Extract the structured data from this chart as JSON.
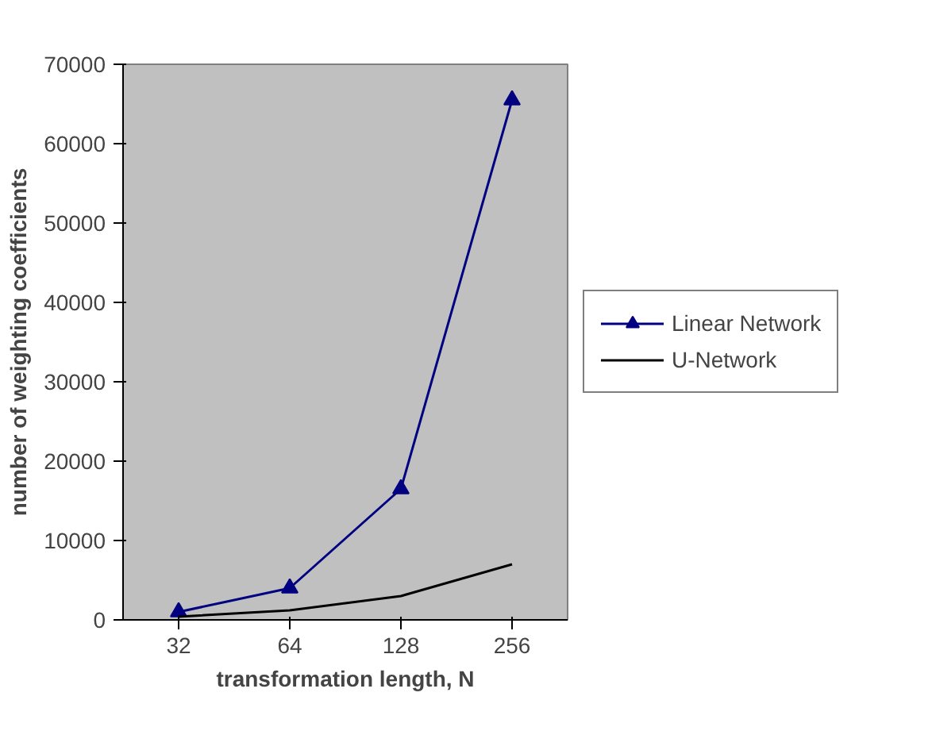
{
  "chart_data": {
    "type": "line",
    "xlabel": "transformation length, N",
    "ylabel": "number of weighting coefficients",
    "categories": [
      "32",
      "64",
      "128",
      "256"
    ],
    "series": [
      {
        "name": "Linear Network",
        "color": "#000080",
        "marker": "triangle",
        "values": [
          1000,
          4000,
          16500,
          65500
        ]
      },
      {
        "name": "U-Network",
        "color": "#000000",
        "marker": "none",
        "values": [
          400,
          1200,
          3000,
          7000
        ]
      }
    ],
    "ylim": [
      0,
      70000
    ],
    "yticks": [
      0,
      10000,
      20000,
      30000,
      40000,
      50000,
      60000,
      70000
    ],
    "legend": "right",
    "line_style": "solid"
  }
}
